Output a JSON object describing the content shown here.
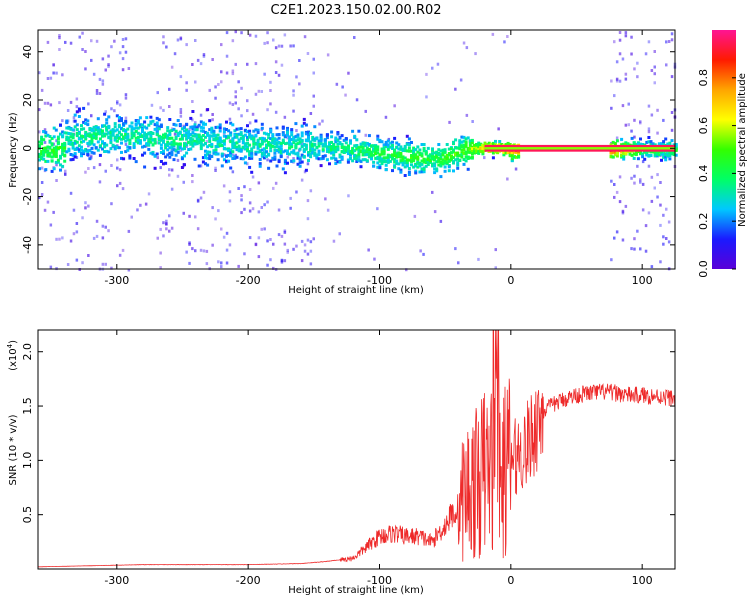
{
  "title": "C2E1.2023.150.02.00.R02",
  "chart_data": [
    {
      "type": "heatmap",
      "xlabel": "Height of straight line (km)",
      "ylabel": "Frequency (Hz)",
      "xlim": [
        -360,
        125
      ],
      "ylim": [
        -50,
        49
      ],
      "x_ticks": [
        -300,
        -200,
        -100,
        0,
        100
      ],
      "y_ticks": [
        -40,
        -20,
        0,
        20,
        40
      ],
      "colorbar": {
        "label": "Normalized spectral amplitude",
        "range": [
          0,
          1
        ],
        "ticks": [
          "0.0",
          "0.2",
          "0.4",
          "0.6",
          "0.8"
        ],
        "tick_values": [
          0,
          0.2,
          0.4,
          0.6,
          0.8
        ],
        "colormap": [
          "#5a00d8",
          "#1a1aff",
          "#00c8ff",
          "#00ff66",
          "#33ff00",
          "#ffff00",
          "#ffa500",
          "#ff1a00",
          "#ff1493"
        ]
      },
      "ridge": [
        {
          "x": -340,
          "f": 5,
          "amp": 0.35
        },
        {
          "x": -300,
          "f": 6,
          "amp": 0.35
        },
        {
          "x": -250,
          "f": 4,
          "amp": 0.35
        },
        {
          "x": -200,
          "f": 2,
          "amp": 0.33
        },
        {
          "x": -160,
          "f": 2,
          "amp": 0.33
        },
        {
          "x": -120,
          "f": 0,
          "amp": 0.38
        },
        {
          "x": -80,
          "f": -3,
          "amp": 0.45
        },
        {
          "x": -55,
          "f": -4,
          "amp": 0.45
        },
        {
          "x": -35,
          "f": 0,
          "amp": 0.5
        },
        {
          "x": -20,
          "f": 1,
          "amp": 0.75
        },
        {
          "x": 0,
          "f": 0,
          "amp": 0.85
        },
        {
          "x": 75,
          "f": 0,
          "amp": 0.9
        },
        {
          "x": 100,
          "f": 0,
          "amp": 0.45
        },
        {
          "x": 125,
          "f": 0,
          "amp": 0.45
        }
      ]
    },
    {
      "type": "line",
      "xlabel": "Height of straight line (km)",
      "ylabel": "SNR (10 * v/v)",
      "y_scale_label": "(x10",
      "y_scale_exp": "4",
      "y_scale_close": ")",
      "xlim": [
        -360,
        125
      ],
      "ylim": [
        0,
        2.2
      ],
      "x_ticks": [
        -300,
        -200,
        -100,
        0,
        100
      ],
      "y_ticks": [
        "0.5",
        "1.0",
        "1.5",
        "2.0"
      ],
      "y_tick_values": [
        0.5,
        1.0,
        1.5,
        2.0
      ],
      "color": "#ee2a2a",
      "series": [
        {
          "x": [
            -360,
            -320,
            -280,
            -240,
            -200,
            -160,
            -140,
            -120,
            -110,
            -100,
            -90,
            -80,
            -70,
            -60,
            -50,
            -45,
            -40,
            -35,
            -30,
            -25,
            -20,
            -15,
            -12,
            -10,
            -8,
            -5,
            0,
            5,
            10,
            15,
            20,
            25,
            30,
            40,
            50,
            60,
            70,
            80,
            90,
            100,
            110,
            120,
            125
          ],
          "y": [
            0.02,
            0.03,
            0.04,
            0.04,
            0.04,
            0.05,
            0.07,
            0.1,
            0.2,
            0.3,
            0.33,
            0.3,
            0.3,
            0.25,
            0.4,
            0.5,
            0.55,
            0.7,
            0.75,
            0.8,
            0.9,
            0.95,
            1.2,
            1.4,
            0.7,
            0.9,
            1.0,
            1.05,
            1.1,
            1.2,
            1.35,
            1.45,
            1.5,
            1.56,
            1.6,
            1.62,
            1.63,
            1.62,
            1.6,
            1.6,
            1.59,
            1.58,
            1.57
          ]
        }
      ]
    }
  ]
}
